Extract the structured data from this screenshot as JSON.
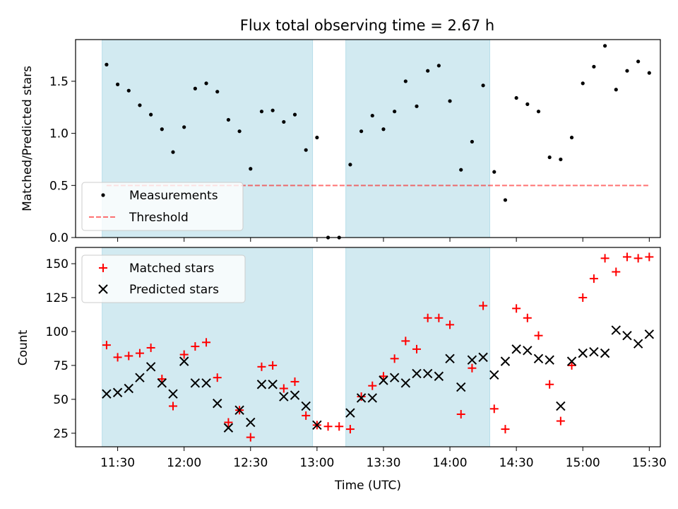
{
  "chart_data": [
    {
      "type": "scatter",
      "title": "Flux total observing time = 2.67 h",
      "ylabel": "Matched/Predicted stars",
      "xlabel": "",
      "xlim": [
        "11:11",
        "15:35"
      ],
      "ylim": [
        0,
        1.9
      ],
      "yticks": [
        "0.0",
        "0.5",
        "1.0",
        "1.5"
      ],
      "legend": {
        "placement": "lower-left",
        "entries": [
          "Measurements",
          "Threshold"
        ]
      },
      "shaded_spans": [
        [
          "11:23",
          "12:58"
        ],
        [
          "13:13",
          "14:18"
        ]
      ],
      "shade_color": "#add8e6",
      "series": [
        {
          "name": "Measurements",
          "color": "#000000",
          "marker": "dot",
          "x": [
            "11:25",
            "11:30",
            "11:35",
            "11:40",
            "11:45",
            "11:50",
            "11:55",
            "12:00",
            "12:05",
            "12:10",
            "12:15",
            "12:20",
            "12:25",
            "12:30",
            "12:35",
            "12:40",
            "12:45",
            "12:50",
            "12:55",
            "13:00",
            "13:05",
            "13:10",
            "13:15",
            "13:20",
            "13:25",
            "13:30",
            "13:35",
            "13:40",
            "13:45",
            "13:50",
            "13:55",
            "14:00",
            "14:05",
            "14:10",
            "14:15",
            "14:20",
            "14:25",
            "14:30",
            "14:35",
            "14:40",
            "14:45",
            "14:50",
            "14:55",
            "15:00",
            "15:05",
            "15:10",
            "15:15",
            "15:20",
            "15:25",
            "15:30"
          ],
          "y": [
            1.66,
            1.47,
            1.41,
            1.27,
            1.18,
            1.04,
            0.82,
            1.06,
            1.43,
            1.48,
            1.4,
            1.13,
            1.02,
            0.66,
            1.21,
            1.22,
            1.11,
            1.18,
            0.84,
            0.96,
            0,
            0,
            0.7,
            1.02,
            1.17,
            1.04,
            1.21,
            1.5,
            1.26,
            1.6,
            1.65,
            1.31,
            0.65,
            0.92,
            1.46,
            0.63,
            0.36,
            1.34,
            1.28,
            1.21,
            0.77,
            0.75,
            0.96,
            1.48,
            1.64,
            1.84,
            1.42,
            1.6,
            1.69,
            1.58
          ]
        },
        {
          "name": "Threshold",
          "color": "#ff0000",
          "style": "dashed",
          "x": [
            "11:25",
            "15:30"
          ],
          "y": [
            0.5,
            0.5
          ]
        }
      ]
    },
    {
      "type": "scatter",
      "title": "",
      "xlabel": "Time (UTC)",
      "ylabel": "Count",
      "xlim": [
        "11:11",
        "15:35"
      ],
      "ylim": [
        15,
        162
      ],
      "yticks": [
        "25",
        "50",
        "75",
        "100",
        "125",
        "150"
      ],
      "xticks": [
        "11:30",
        "12:00",
        "12:30",
        "13:00",
        "13:30",
        "14:00",
        "14:30",
        "15:00",
        "15:30"
      ],
      "legend": {
        "placement": "upper-left",
        "entries": [
          "Matched stars",
          "Predicted stars"
        ]
      },
      "shaded_spans": [
        [
          "11:23",
          "12:58"
        ],
        [
          "13:13",
          "14:18"
        ]
      ],
      "shade_color": "#add8e6",
      "series": [
        {
          "name": "Matched stars",
          "color": "#ff0000",
          "marker": "plus",
          "x": [
            "11:25",
            "11:30",
            "11:35",
            "11:40",
            "11:45",
            "11:50",
            "11:55",
            "12:00",
            "12:05",
            "12:10",
            "12:15",
            "12:20",
            "12:25",
            "12:30",
            "12:35",
            "12:40",
            "12:45",
            "12:50",
            "12:55",
            "13:00",
            "13:05",
            "13:10",
            "13:15",
            "13:20",
            "13:25",
            "13:30",
            "13:35",
            "13:40",
            "13:45",
            "13:50",
            "13:55",
            "14:00",
            "14:05",
            "14:10",
            "14:15",
            "14:20",
            "14:25",
            "14:30",
            "14:35",
            "14:40",
            "14:45",
            "14:50",
            "14:55",
            "15:00",
            "15:05",
            "15:10",
            "15:15",
            "15:20",
            "15:25",
            "15:30"
          ],
          "y": [
            90,
            81,
            82,
            84,
            88,
            65,
            45,
            83,
            89,
            92,
            66,
            33,
            42,
            22,
            74,
            75,
            58,
            63,
            38,
            31,
            30,
            30,
            28,
            52,
            60,
            67,
            80,
            93,
            87,
            110,
            110,
            105,
            39,
            73,
            119,
            43,
            28,
            117,
            110,
            97,
            61,
            34,
            75,
            125,
            139,
            154,
            144,
            155,
            154,
            155
          ]
        },
        {
          "name": "Predicted stars",
          "color": "#000000",
          "marker": "x",
          "x": [
            "11:25",
            "11:30",
            "11:35",
            "11:40",
            "11:45",
            "11:50",
            "11:55",
            "12:00",
            "12:05",
            "12:10",
            "12:15",
            "12:20",
            "12:25",
            "12:30",
            "12:35",
            "12:40",
            "12:45",
            "12:50",
            "12:55",
            "13:00",
            "13:15",
            "13:20",
            "13:25",
            "13:30",
            "13:35",
            "13:40",
            "13:45",
            "13:50",
            "13:55",
            "14:00",
            "14:05",
            "14:10",
            "14:15",
            "14:20",
            "14:25",
            "14:30",
            "14:35",
            "14:40",
            "14:45",
            "14:50",
            "14:55",
            "15:00",
            "15:05",
            "15:10",
            "15:15",
            "15:20",
            "15:25",
            "15:30"
          ],
          "y": [
            54,
            55,
            58,
            66,
            74,
            62,
            54,
            78,
            62,
            62,
            47,
            29,
            42,
            33,
            61,
            61,
            52,
            53,
            45,
            31,
            40,
            51,
            51,
            64,
            66,
            62,
            69,
            69,
            67,
            80,
            59,
            79,
            81,
            68,
            78,
            87,
            86,
            80,
            79,
            45,
            78,
            84,
            85,
            84,
            101,
            97,
            91,
            98
          ]
        }
      ]
    }
  ]
}
